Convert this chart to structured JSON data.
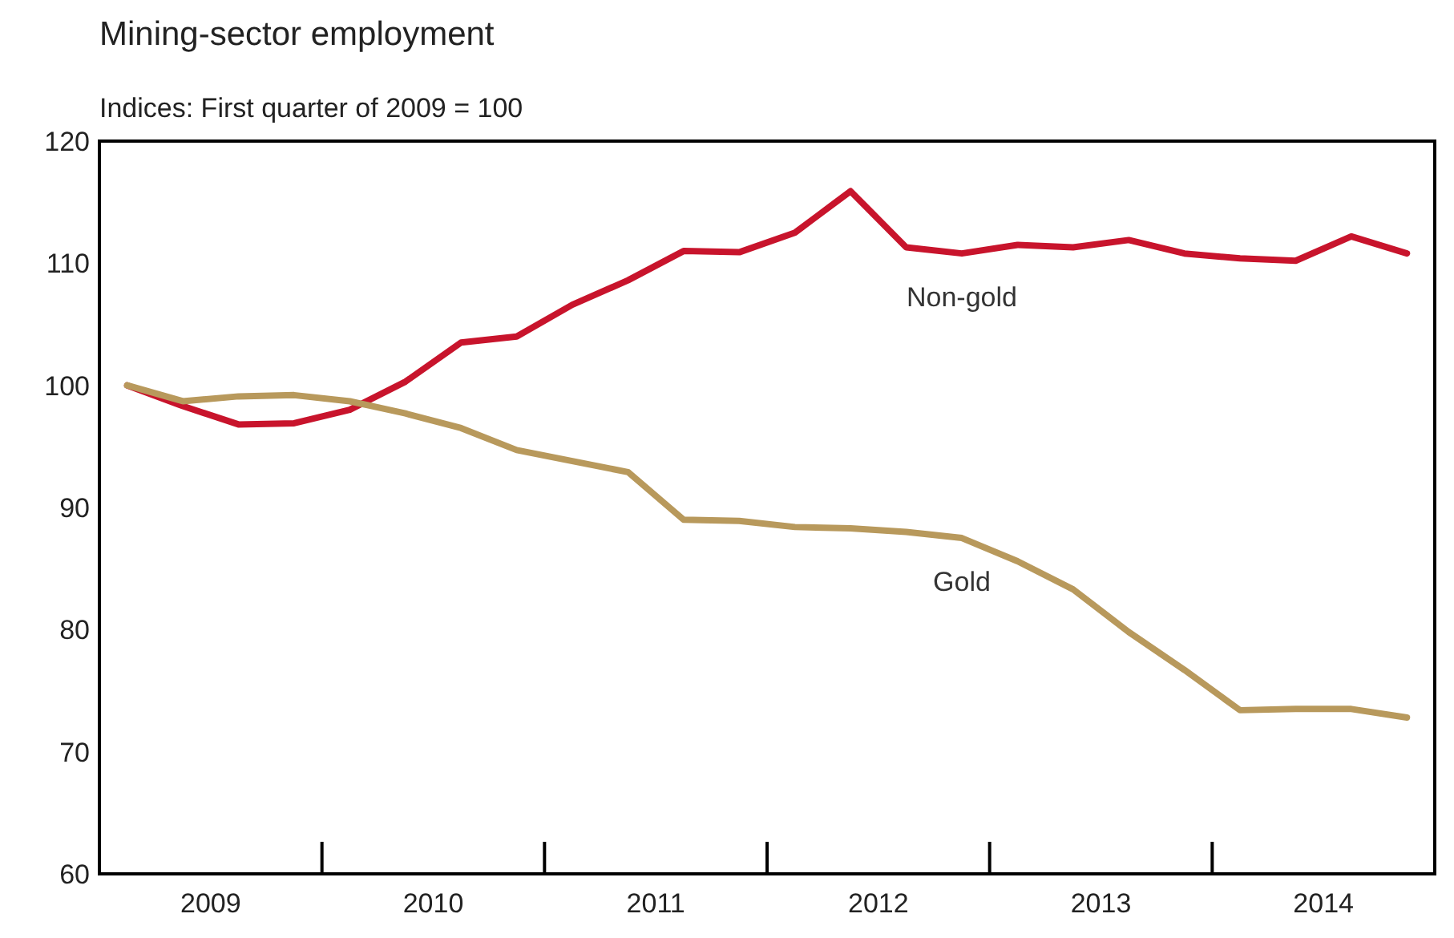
{
  "chart_data": {
    "type": "line",
    "title": "Mining-sector employment",
    "subtitle": "Indices: First quarter of 2009 = 100",
    "x": [
      2009.125,
      2009.375,
      2009.625,
      2009.875,
      2010.125,
      2010.375,
      2010.625,
      2010.875,
      2011.125,
      2011.375,
      2011.625,
      2011.875,
      2012.125,
      2012.375,
      2012.625,
      2012.875,
      2013.125,
      2013.375,
      2013.625,
      2013.875,
      2014.125,
      2014.375,
      2014.625,
      2014.875
    ],
    "series": [
      {
        "name": "Non-gold",
        "color": "#c8142c",
        "values": [
          100,
          98.3,
          96.8,
          96.9,
          98,
          100.3,
          103.5,
          104,
          106.6,
          108.6,
          111,
          110.9,
          112.5,
          115.9,
          111.3,
          110.8,
          111.5,
          111.3,
          111.9,
          110.8,
          110.4,
          110.2,
          112.2,
          110.8
        ]
      },
      {
        "name": "Gold",
        "color": "#b8995c",
        "values": [
          100,
          98.7,
          99.1,
          99.2,
          98.7,
          97.7,
          96.5,
          94.7,
          93.8,
          92.9,
          89,
          88.9,
          88.4,
          88.3,
          88,
          87.5,
          85.6,
          83.3,
          79.8,
          76.7,
          73.4,
          73.5,
          73.5,
          72.8
        ]
      }
    ],
    "xlim": [
      2009,
      2015
    ],
    "xticks": [
      {
        "value": 2009.5,
        "label": "2009"
      },
      {
        "value": 2010.5,
        "label": "2010"
      },
      {
        "value": 2011.5,
        "label": "2011"
      },
      {
        "value": 2012.5,
        "label": "2012"
      },
      {
        "value": 2013.5,
        "label": "2013"
      },
      {
        "value": 2014.5,
        "label": "2014"
      }
    ],
    "ylim": [
      60,
      120
    ],
    "yticks": [
      60,
      70,
      80,
      90,
      100,
      110,
      120
    ],
    "grid": false,
    "legend": false,
    "line_style": "solid",
    "marker": "none"
  }
}
